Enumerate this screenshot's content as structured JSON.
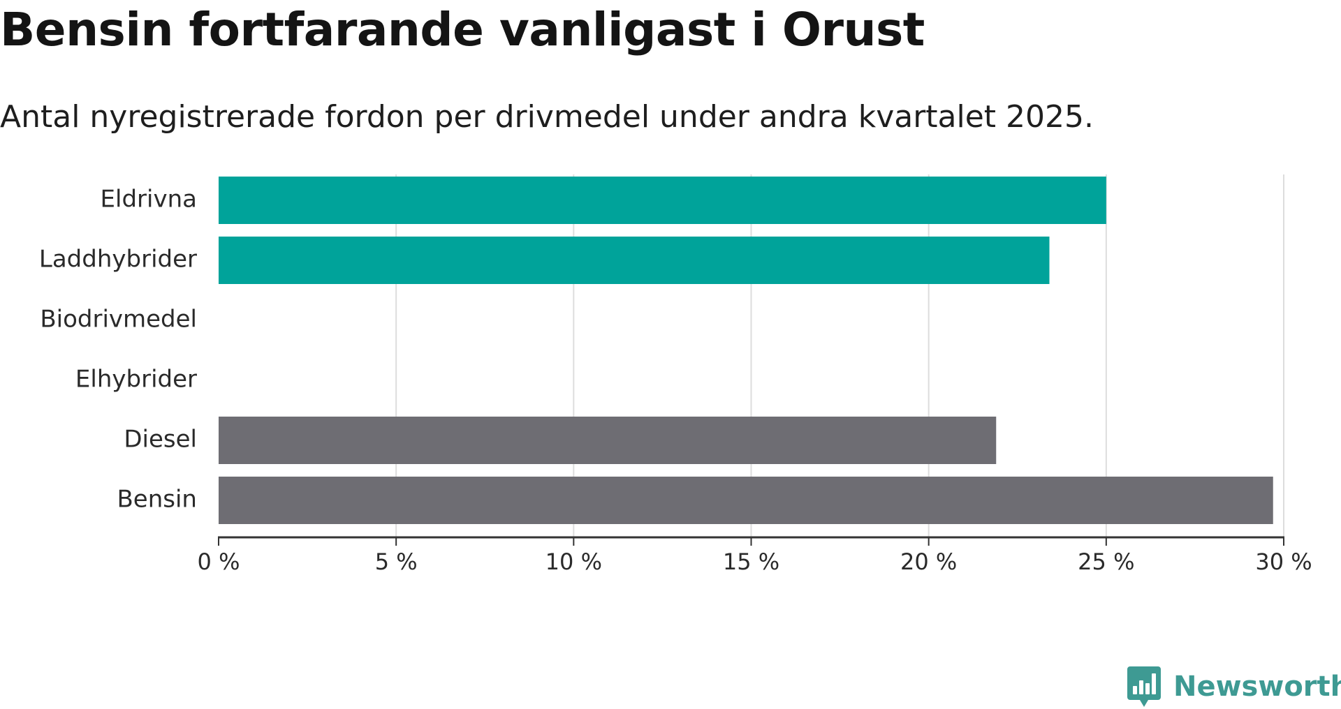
{
  "header": {
    "title": "Bensin fortfarande vanligast i Orust",
    "subtitle": "Antal nyregistrerade fordon per drivmedel under andra kvartalet 2025."
  },
  "brand": {
    "name": "Newsworthy",
    "logo_icon": "bar-chart-bubble-icon",
    "color": "#3e9a93"
  },
  "chart_data": {
    "type": "bar",
    "orientation": "horizontal",
    "categories": [
      "Eldrivna",
      "Laddhybrider",
      "Biodrivmedel",
      "Elhybrider",
      "Diesel",
      "Bensin"
    ],
    "values": [
      25.0,
      23.4,
      0,
      0,
      21.9,
      29.7
    ],
    "colors": [
      "#00a39a",
      "#00a39a",
      "#00a39a",
      "#00a39a",
      "#6e6d73",
      "#6e6d73"
    ],
    "xlim": [
      0,
      30
    ],
    "xticks": [
      0,
      5,
      10,
      15,
      20,
      25,
      30
    ],
    "tick_labels": [
      "0 %",
      "5 %",
      "10 %",
      "15 %",
      "20 %",
      "25 %",
      "30 %"
    ],
    "grid": true
  }
}
